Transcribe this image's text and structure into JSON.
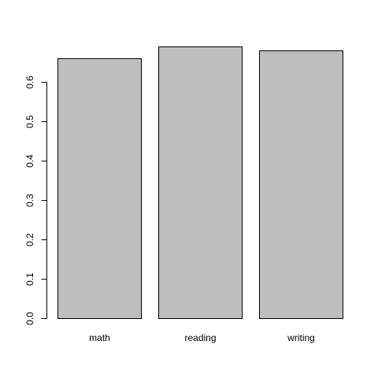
{
  "chart_data": {
    "type": "bar",
    "categories": [
      "math",
      "reading",
      "writing"
    ],
    "values": [
      0.66,
      0.69,
      0.68
    ],
    "title": "",
    "xlabel": "",
    "ylabel": "",
    "ylim": [
      0,
      0.69
    ],
    "yticks": [
      0.0,
      0.1,
      0.2,
      0.3,
      0.4,
      0.5,
      0.6
    ],
    "ytick_labels": [
      "0.0",
      "0.1",
      "0.2",
      "0.3",
      "0.4",
      "0.5",
      "0.6"
    ],
    "bar_color": "#bebebe",
    "edge_color": "#000000",
    "grid": false,
    "legend": "none"
  }
}
